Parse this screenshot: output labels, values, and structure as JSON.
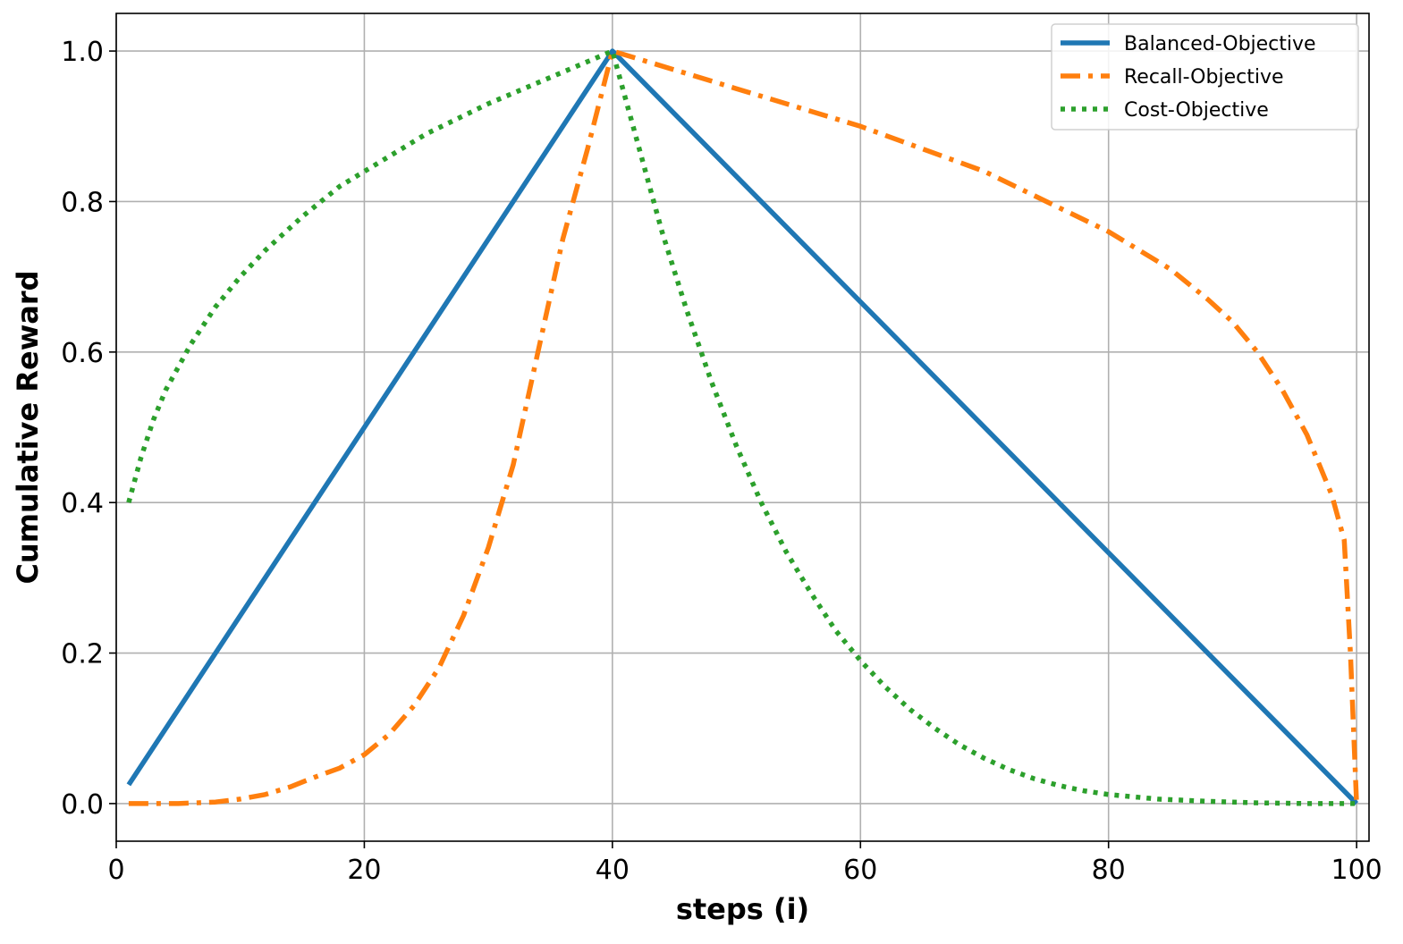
{
  "chart_data": {
    "type": "line",
    "title": "",
    "xlabel": "steps (i)",
    "ylabel": "Cumulative Reward",
    "xlim": [
      0,
      101
    ],
    "ylim": [
      -0.05,
      1.05
    ],
    "xticks": [
      0,
      20,
      40,
      60,
      80,
      100
    ],
    "yticks": [
      0.0,
      0.2,
      0.4,
      0.6,
      0.8,
      1.0
    ],
    "xtick_labels": [
      "0",
      "20",
      "40",
      "60",
      "80",
      "100"
    ],
    "ytick_labels": [
      "0.0",
      "0.2",
      "0.4",
      "0.6",
      "0.8",
      "1.0"
    ],
    "grid": true,
    "legend_position": "top-right",
    "series": [
      {
        "name": "Balanced-Objective",
        "color": "#1f77b4",
        "style": "solid",
        "x": [
          1,
          40,
          100
        ],
        "y": [
          0.025,
          1.0,
          0.0
        ]
      },
      {
        "name": "Recall-Objective",
        "color": "#ff7f0e",
        "style": "dashdot",
        "x": [
          1,
          5,
          8,
          10,
          12,
          14,
          16,
          18,
          20,
          22,
          24,
          26,
          28,
          30,
          32,
          34,
          36,
          38,
          40,
          45,
          50,
          55,
          60,
          65,
          70,
          75,
          80,
          85,
          88,
          90,
          92,
          94,
          96,
          97,
          98,
          99,
          99.5,
          100
        ],
        "y": [
          0.0,
          0.0,
          0.002,
          0.006,
          0.012,
          0.022,
          0.035,
          0.047,
          0.065,
          0.092,
          0.13,
          0.18,
          0.25,
          0.34,
          0.45,
          0.6,
          0.75,
          0.87,
          1.0,
          0.975,
          0.95,
          0.925,
          0.9,
          0.87,
          0.84,
          0.8,
          0.76,
          0.71,
          0.67,
          0.64,
          0.6,
          0.55,
          0.49,
          0.45,
          0.41,
          0.35,
          0.2,
          0.0
        ]
      },
      {
        "name": "Cost-Objective",
        "color": "#2ca02c",
        "style": "dotted",
        "x": [
          1,
          2,
          3,
          4,
          5,
          6,
          8,
          10,
          12,
          15,
          18,
          20,
          25,
          30,
          35,
          40,
          42,
          44,
          46,
          48,
          50,
          52,
          54,
          56,
          58,
          60,
          62,
          64,
          66,
          68,
          70,
          72,
          74,
          76,
          78,
          80,
          84,
          88,
          92,
          96,
          100
        ],
        "y": [
          0.4,
          0.46,
          0.51,
          0.55,
          0.58,
          0.61,
          0.66,
          0.7,
          0.735,
          0.78,
          0.82,
          0.84,
          0.89,
          0.93,
          0.965,
          1.0,
          0.88,
          0.76,
          0.655,
          0.56,
          0.475,
          0.4,
          0.335,
          0.28,
          0.23,
          0.19,
          0.155,
          0.125,
          0.1,
          0.078,
          0.06,
          0.045,
          0.033,
          0.024,
          0.017,
          0.012,
          0.006,
          0.003,
          0.001,
          0.0,
          0.0
        ]
      }
    ]
  }
}
